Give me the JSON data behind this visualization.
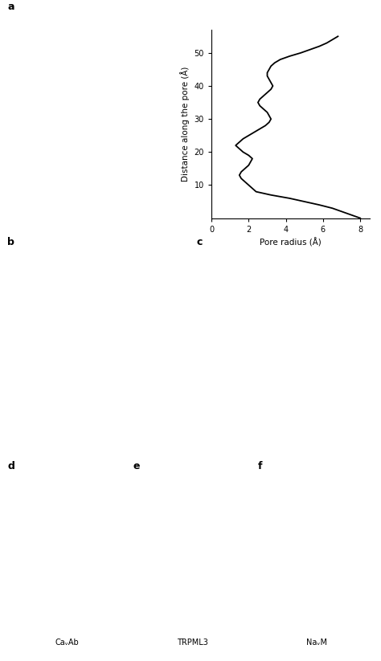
{
  "pore_radius_y": [
    55,
    54,
    53,
    52,
    51,
    50,
    49,
    48,
    47,
    46,
    45,
    44,
    43,
    42,
    41,
    40,
    39,
    38,
    37,
    36,
    35,
    34,
    33,
    32,
    31,
    30,
    29,
    28,
    27,
    26,
    25,
    24,
    23,
    22,
    21,
    20,
    19,
    18,
    17,
    16,
    15,
    14,
    13,
    12,
    11,
    10,
    9,
    8,
    7,
    6,
    5,
    4,
    3,
    2,
    1,
    0
  ],
  "pore_radius_x": [
    6.8,
    6.5,
    6.2,
    5.8,
    5.3,
    4.8,
    4.2,
    3.7,
    3.4,
    3.2,
    3.1,
    3.0,
    3.0,
    3.1,
    3.2,
    3.3,
    3.2,
    3.0,
    2.8,
    2.6,
    2.5,
    2.6,
    2.8,
    3.0,
    3.1,
    3.2,
    3.1,
    2.9,
    2.6,
    2.3,
    2.0,
    1.7,
    1.5,
    1.3,
    1.5,
    1.7,
    2.0,
    2.2,
    2.1,
    2.0,
    1.8,
    1.6,
    1.5,
    1.6,
    1.8,
    2.0,
    2.2,
    2.4,
    3.2,
    4.2,
    5.0,
    5.8,
    6.5,
    7.0,
    7.5,
    8.0
  ],
  "ylabel": "Distance along the pore (Å)",
  "xlabel": "Pore radius (Å)",
  "yticks": [
    10,
    20,
    30,
    40,
    50
  ],
  "xticks": [
    0,
    2,
    4,
    6,
    8
  ],
  "ylim": [
    0,
    57
  ],
  "xlim": [
    0,
    8.5
  ],
  "panel_a_label": "a",
  "panel_b_label": "b",
  "panel_c_label": "c",
  "panel_d_label": "d",
  "panel_e_label": "e",
  "panel_f_label": "f",
  "label_d_text": "CaᵥAb",
  "label_e_text": "TRPML3",
  "label_f_text": "NaᵥM",
  "fig_width": 4.74,
  "fig_height": 8.23,
  "background_color": "#ffffff",
  "panel_bg_color": "#dde8f0",
  "panel_c_bg": "#dff0f8",
  "plot_linecolor": "#000000",
  "plot_linewidth": 1.3,
  "label_fontsize": 9,
  "tick_fontsize": 7,
  "axis_label_fontsize": 7.5
}
